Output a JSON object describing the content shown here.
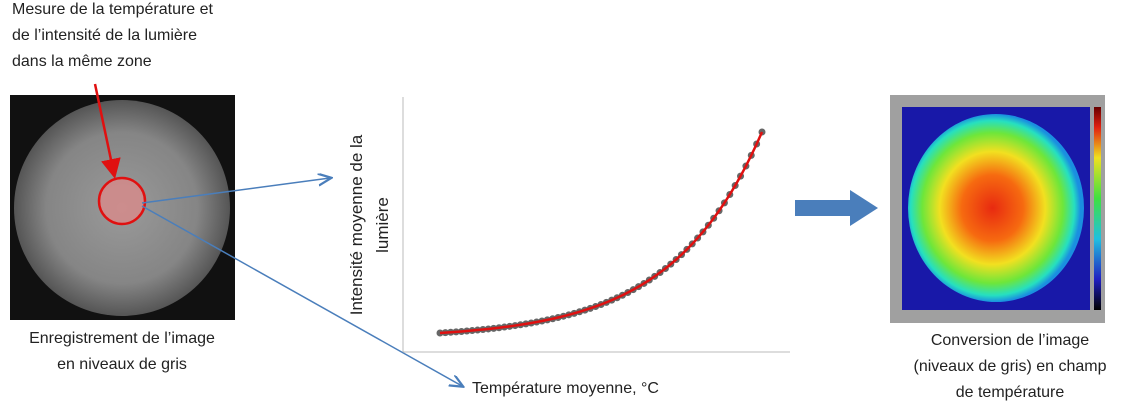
{
  "annotation": {
    "lines": [
      "Mesure de la température et",
      "de l’intensité de la lumière",
      "dans la même zone"
    ]
  },
  "left_panel": {
    "caption": [
      "Enregistrement de l’image",
      "en niveaux de gris"
    ]
  },
  "graph": {
    "y_label": [
      "Intensité moyenne de la",
      "lumière"
    ],
    "x_label": "Température moyenne, °C"
  },
  "right_panel": {
    "caption": [
      "Conversion de l’image",
      "(niveaux de gris) en champ",
      "de température"
    ]
  }
}
